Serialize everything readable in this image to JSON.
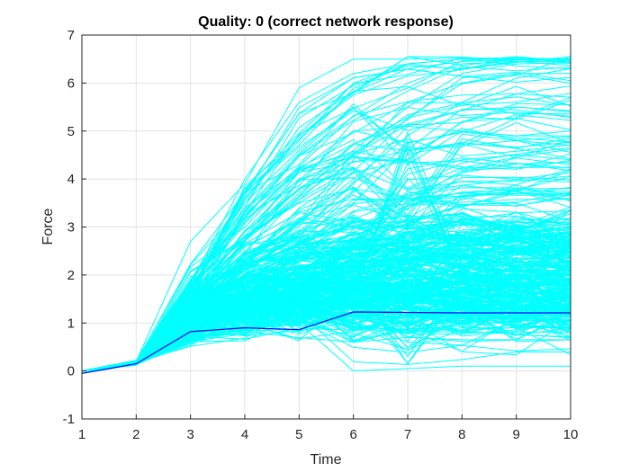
{
  "chart_data": {
    "type": "line",
    "title": "Quality: 0 (correct network response)",
    "xlabel": "Time",
    "ylabel": "Force",
    "xlim": [
      1,
      10
    ],
    "ylim": [
      -1,
      7
    ],
    "xticks": [
      "1",
      "2",
      "3",
      "4",
      "5",
      "6",
      "7",
      "8",
      "9",
      "10"
    ],
    "yticks": [
      "-1",
      "0",
      "1",
      "2",
      "3",
      "4",
      "5",
      "6",
      "7"
    ],
    "grid": true,
    "colors": {
      "bundle": "#00ffff",
      "highlight": "#0000ff",
      "axis": "#262626",
      "grid": "#e3e3e3"
    },
    "x": [
      1,
      2,
      3,
      4,
      5,
      6,
      7,
      8,
      9,
      10
    ],
    "series": [
      {
        "values": [
          -0.05,
          0.15,
          0.82,
          0.9,
          0.86,
          1.23,
          1.22,
          1.21,
          1.21,
          1.21
        ]
      },
      {
        "values": [
          -0.05,
          0.2,
          1.8,
          4.0,
          5.6,
          6.2,
          6.4,
          6.5,
          6.5,
          6.5
        ]
      },
      {
        "values": [
          -0.05,
          0.2,
          1.6,
          3.6,
          4.9,
          5.8,
          6.3,
          6.45,
          6.48,
          6.48
        ]
      },
      {
        "values": [
          -0.05,
          0.18,
          1.5,
          3.2,
          4.5,
          5.3,
          6.0,
          6.4,
          6.45,
          6.45
        ]
      },
      {
        "values": [
          -0.05,
          0.2,
          2.7,
          3.9,
          5.9,
          6.5,
          6.5,
          6.52,
          6.52,
          6.5
        ]
      },
      {
        "values": [
          -0.05,
          0.17,
          1.3,
          2.7,
          3.7,
          4.6,
          5.5,
          6.2,
          6.4,
          6.42
        ]
      },
      {
        "values": [
          -0.05,
          0.16,
          1.2,
          2.2,
          3.1,
          4.0,
          4.9,
          5.6,
          6.1,
          6.3
        ]
      },
      {
        "values": [
          -0.05,
          0.19,
          1.7,
          3.4,
          4.2,
          5.0,
          5.1,
          5.0,
          4.9,
          5.0
        ]
      },
      {
        "values": [
          -0.05,
          0.15,
          1.1,
          1.9,
          2.5,
          3.1,
          3.1,
          3.1,
          3.1,
          3.1
        ]
      },
      {
        "values": [
          -0.05,
          0.18,
          1.4,
          2.9,
          3.8,
          4.2,
          3.2,
          4.7,
          4.8,
          4.7
        ]
      },
      {
        "values": [
          -0.05,
          0.17,
          1.3,
          2.5,
          2.8,
          1.5,
          4.8,
          2.0,
          2.1,
          2.0
        ]
      },
      {
        "values": [
          -0.05,
          0.16,
          1.2,
          1.6,
          1.9,
          2.9,
          2.6,
          3.7,
          3.8,
          3.8
        ]
      },
      {
        "values": [
          -0.05,
          0.15,
          1.1,
          1.3,
          1.5,
          2.6,
          4.1,
          4.4,
          4.5,
          4.4
        ]
      },
      {
        "values": [
          -0.05,
          0.17,
          1.4,
          2.2,
          3.3,
          3.1,
          2.5,
          2.8,
          2.9,
          2.8
        ]
      },
      {
        "values": [
          -0.05,
          0.2,
          1.9,
          3.5,
          4.6,
          5.5,
          4.3,
          5.0,
          4.9,
          4.9
        ]
      },
      {
        "values": [
          -0.05,
          0.16,
          1.2,
          1.8,
          2.2,
          2.1,
          2.3,
          2.2,
          2.2,
          2.2
        ]
      },
      {
        "values": [
          -0.05,
          0.15,
          1.0,
          1.4,
          1.6,
          1.7,
          1.8,
          1.7,
          1.7,
          1.7
        ]
      },
      {
        "values": [
          -0.05,
          0.14,
          0.9,
          1.2,
          1.3,
          1.4,
          1.5,
          1.45,
          1.45,
          1.45
        ]
      },
      {
        "values": [
          -0.05,
          0.16,
          1.1,
          1.5,
          1.7,
          2.0,
          2.1,
          2.0,
          2.0,
          2.0
        ]
      },
      {
        "values": [
          -0.05,
          0.15,
          1.0,
          1.2,
          1.1,
          0.6,
          0.7,
          0.65,
          0.65,
          0.65
        ]
      },
      {
        "values": [
          -0.05,
          0.14,
          0.85,
          1.0,
          1.0,
          0.0,
          0.05,
          0.1,
          0.1,
          0.1
        ]
      },
      {
        "values": [
          -0.05,
          0.15,
          0.9,
          1.1,
          1.2,
          1.8,
          0.3,
          1.9,
          1.8,
          1.8
        ]
      },
      {
        "values": [
          -0.05,
          0.16,
          1.2,
          1.7,
          2.1,
          2.4,
          2.6,
          2.5,
          2.5,
          2.5
        ]
      },
      {
        "values": [
          -0.05,
          0.17,
          1.3,
          2.0,
          2.4,
          2.7,
          2.8,
          2.7,
          2.7,
          2.7
        ]
      },
      {
        "values": [
          -0.05,
          0.15,
          1.0,
          1.3,
          1.4,
          1.5,
          1.2,
          1.3,
          1.3,
          1.3
        ]
      },
      {
        "values": [
          -0.05,
          0.14,
          0.9,
          1.1,
          1.2,
          0.9,
          0.8,
          0.9,
          0.9,
          0.9
        ]
      },
      {
        "values": [
          -0.05,
          0.16,
          1.1,
          1.6,
          1.9,
          2.2,
          2.0,
          2.1,
          2.1,
          2.1
        ]
      },
      {
        "values": [
          -0.05,
          0.18,
          1.6,
          2.8,
          3.5,
          3.8,
          3.6,
          3.7,
          3.7,
          3.7
        ]
      },
      {
        "values": [
          -0.05,
          0.17,
          1.4,
          2.4,
          3.0,
          4.4,
          5.6,
          6.0,
          6.2,
          6.2
        ]
      },
      {
        "values": [
          -0.05,
          0.19,
          1.8,
          3.7,
          4.8,
          6.0,
          6.4,
          6.5,
          6.5,
          6.5
        ]
      }
    ]
  }
}
